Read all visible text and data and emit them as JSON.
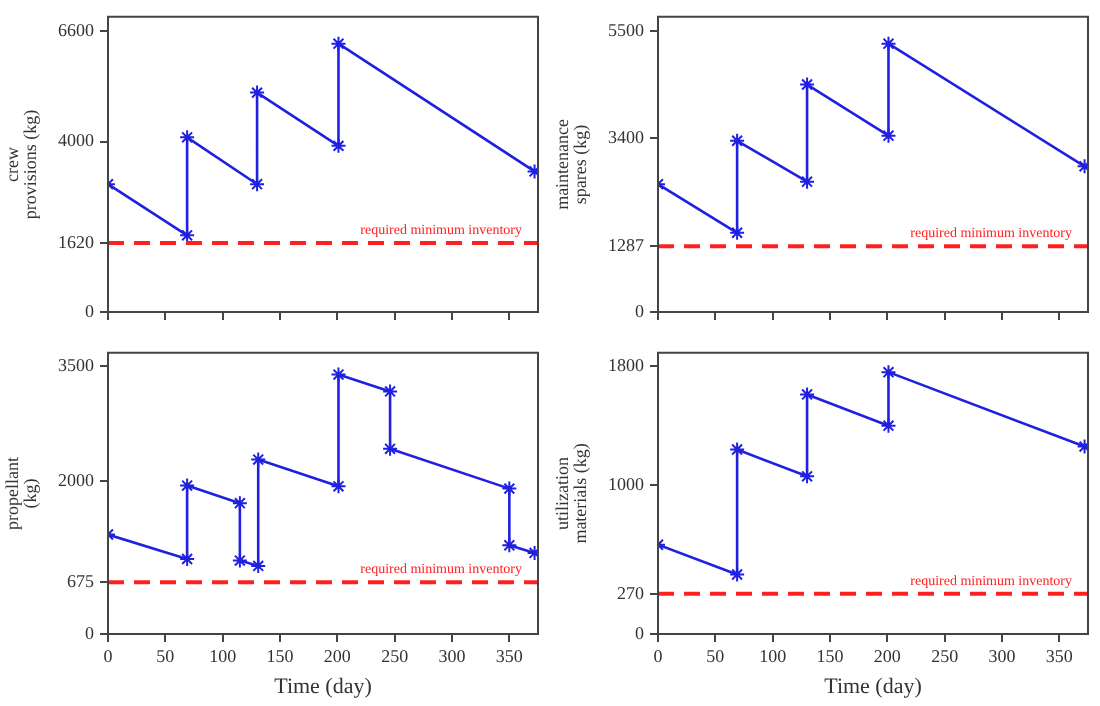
{
  "chart_data": [
    {
      "type": "line",
      "ylabel": "crew\nprovisions (kg)",
      "x": [
        0,
        69,
        69,
        130,
        130,
        201,
        201,
        372
      ],
      "xlim": [
        0,
        375
      ],
      "xticks": [
        0,
        50,
        100,
        150,
        200,
        250,
        300,
        350
      ],
      "ylim": [
        0,
        6930
      ],
      "yticks": [
        0,
        1620,
        4000,
        6600
      ],
      "tick_labels": "y",
      "grid": false,
      "legend": false,
      "marker": "cross",
      "line_style": "solid",
      "series": [
        {
          "color": "#2020e0",
          "values": [
            3000,
            1800,
            4100,
            3000,
            5150,
            3900,
            6300,
            3300
          ]
        }
      ],
      "ref_lines": [
        {
          "axis": "y",
          "value": 1620,
          "label": "required minimum inventory",
          "color": "#ff2020",
          "line_style": "dashed"
        }
      ]
    },
    {
      "type": "line",
      "ylabel": "maintenance\nspares (kg)",
      "x": [
        0,
        69,
        69,
        130,
        130,
        201,
        201,
        372
      ],
      "xlim": [
        0,
        375
      ],
      "xticks": [
        0,
        50,
        100,
        150,
        200,
        250,
        300,
        350
      ],
      "ylim": [
        0,
        5775
      ],
      "yticks": [
        0,
        1287,
        3400,
        5500
      ],
      "tick_labels": "y",
      "grid": false,
      "legend": false,
      "marker": "cross",
      "line_style": "solid",
      "series": [
        {
          "color": "#2020e0",
          "values": [
            2500,
            1550,
            3350,
            2550,
            4450,
            3450,
            5250,
            2850
          ]
        }
      ],
      "ref_lines": [
        {
          "axis": "y",
          "value": 1287,
          "label": "required minimum inventory",
          "color": "#ff2020",
          "line_style": "dashed"
        }
      ]
    },
    {
      "type": "line",
      "xlabel": "Time (day)",
      "ylabel": "propellant\n(kg)",
      "x": [
        0,
        69,
        69,
        115,
        115,
        131,
        131,
        201,
        201,
        246,
        246,
        350,
        350,
        372
      ],
      "xlim": [
        0,
        375
      ],
      "xticks": [
        0,
        50,
        100,
        150,
        200,
        250,
        300,
        350
      ],
      "ylim": [
        0,
        3675
      ],
      "yticks": [
        0,
        675,
        2000,
        3500
      ],
      "grid": false,
      "legend": false,
      "marker": "cross",
      "line_style": "solid",
      "series": [
        {
          "color": "#2020e0",
          "values": [
            1300,
            980,
            1940,
            1710,
            960,
            890,
            2280,
            1930,
            3390,
            3170,
            2420,
            1900,
            1160,
            1060
          ]
        }
      ],
      "ref_lines": [
        {
          "axis": "y",
          "value": 675,
          "label": "required minimum inventory",
          "color": "#ff2020",
          "line_style": "dashed"
        }
      ]
    },
    {
      "type": "line",
      "xlabel": "Time (day)",
      "ylabel": "utilization\nmaterials (kg)",
      "x": [
        0,
        69,
        69,
        130,
        130,
        201,
        201,
        372
      ],
      "xlim": [
        0,
        375
      ],
      "xticks": [
        0,
        50,
        100,
        150,
        200,
        250,
        300,
        350
      ],
      "ylim": [
        0,
        1890
      ],
      "yticks": [
        0,
        270,
        1000,
        1800
      ],
      "grid": false,
      "legend": false,
      "marker": "cross",
      "line_style": "solid",
      "series": [
        {
          "color": "#2020e0",
          "values": [
            600,
            400,
            1240,
            1060,
            1610,
            1400,
            1760,
            1260
          ]
        }
      ],
      "ref_lines": [
        {
          "axis": "y",
          "value": 270,
          "label": "required minimum inventory",
          "color": "#ff2020",
          "line_style": "dashed"
        }
      ]
    }
  ]
}
